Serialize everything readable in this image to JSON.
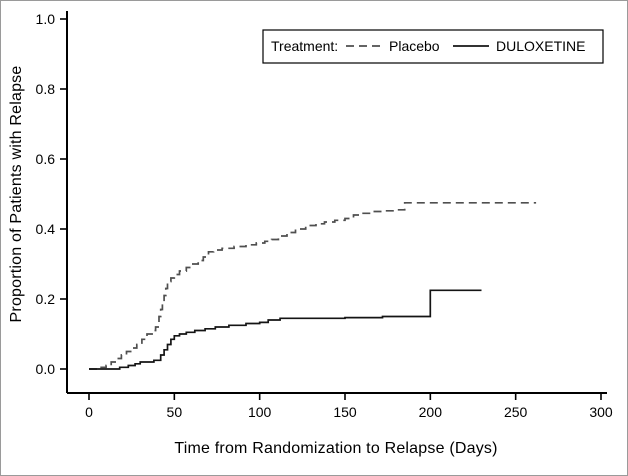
{
  "figure": {
    "background": "#ffffff",
    "border_color": "#9a9a9a"
  },
  "chart_data": {
    "type": "line",
    "subtype": "kaplan-meier-step",
    "title": "",
    "xlabel": "Time from Randomization to Relapse (Days)",
    "ylabel": "Proportion of Patients with Relapse",
    "legend_title": "Treatment:",
    "legend_position": "top-right",
    "grid": false,
    "axis_color": "#000000",
    "xlim": [
      0,
      300
    ],
    "ylim": [
      0,
      1.0
    ],
    "xticks": [
      0,
      50,
      100,
      150,
      200,
      250,
      300
    ],
    "yticks": [
      0.0,
      0.2,
      0.4,
      0.6,
      0.8,
      1.0
    ],
    "series": [
      {
        "name": "Placebo",
        "style": "dashed",
        "color": "#4f4f4f",
        "points": [
          [
            0,
            0
          ],
          [
            6,
            0.005
          ],
          [
            10,
            0.01
          ],
          [
            13,
            0.02
          ],
          [
            16,
            0.03
          ],
          [
            19,
            0.04
          ],
          [
            22,
            0.05
          ],
          [
            25,
            0.06
          ],
          [
            28,
            0.07
          ],
          [
            31,
            0.085
          ],
          [
            34,
            0.1
          ],
          [
            37,
            0.11
          ],
          [
            39,
            0.12
          ],
          [
            41,
            0.15
          ],
          [
            42,
            0.17
          ],
          [
            43,
            0.19
          ],
          [
            44,
            0.21
          ],
          [
            45,
            0.23
          ],
          [
            46,
            0.25
          ],
          [
            48,
            0.26
          ],
          [
            50,
            0.27
          ],
          [
            53,
            0.28
          ],
          [
            57,
            0.29
          ],
          [
            60,
            0.3
          ],
          [
            64,
            0.31
          ],
          [
            67,
            0.32
          ],
          [
            70,
            0.335
          ],
          [
            73,
            0.34
          ],
          [
            78,
            0.345
          ],
          [
            85,
            0.35
          ],
          [
            92,
            0.355
          ],
          [
            98,
            0.36
          ],
          [
            103,
            0.365
          ],
          [
            107,
            0.37
          ],
          [
            111,
            0.38
          ],
          [
            116,
            0.39
          ],
          [
            121,
            0.4
          ],
          [
            127,
            0.41
          ],
          [
            133,
            0.415
          ],
          [
            138,
            0.42
          ],
          [
            144,
            0.425
          ],
          [
            150,
            0.43
          ],
          [
            155,
            0.44
          ],
          [
            160,
            0.445
          ],
          [
            166,
            0.45
          ],
          [
            172,
            0.452
          ],
          [
            180,
            0.455
          ],
          [
            185,
            0.475
          ],
          [
            262,
            0.475
          ]
        ]
      },
      {
        "name": "DULOXETINE",
        "style": "solid",
        "color": "#141414",
        "points": [
          [
            0,
            0
          ],
          [
            18,
            0.005
          ],
          [
            23,
            0.01
          ],
          [
            27,
            0.015
          ],
          [
            30,
            0.02
          ],
          [
            38,
            0.025
          ],
          [
            42,
            0.04
          ],
          [
            44,
            0.055
          ],
          [
            46,
            0.07
          ],
          [
            48,
            0.085
          ],
          [
            50,
            0.095
          ],
          [
            53,
            0.1
          ],
          [
            57,
            0.105
          ],
          [
            62,
            0.11
          ],
          [
            68,
            0.115
          ],
          [
            74,
            0.12
          ],
          [
            82,
            0.125
          ],
          [
            92,
            0.13
          ],
          [
            100,
            0.133
          ],
          [
            105,
            0.14
          ],
          [
            112,
            0.145
          ],
          [
            150,
            0.147
          ],
          [
            172,
            0.15
          ],
          [
            200,
            0.225
          ],
          [
            230,
            0.225
          ]
        ]
      }
    ]
  }
}
